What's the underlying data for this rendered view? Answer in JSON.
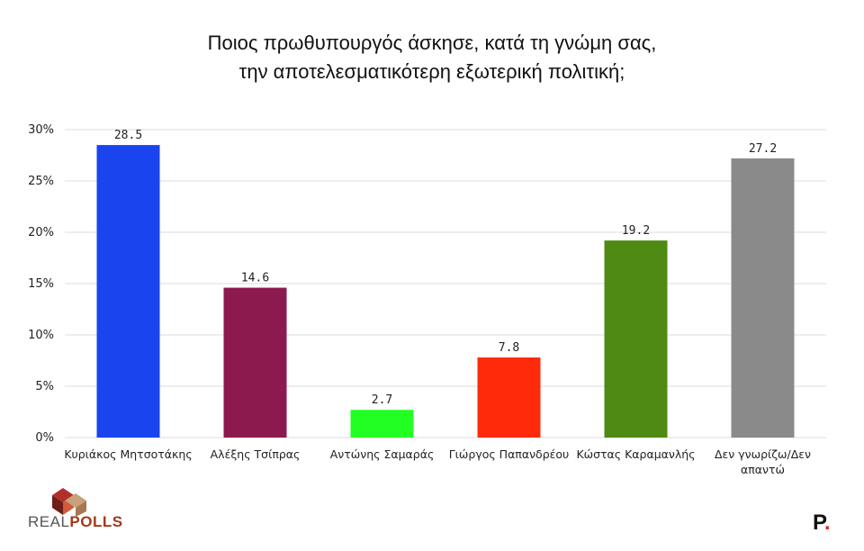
{
  "title_lines": [
    "Ποιος πρωθυπουργός άσκησε, κατά τη γνώμη σας,",
    "την αποτελεσματικότερη εξωτερική πολιτική;"
  ],
  "chart_data": {
    "type": "bar",
    "title": "Ποιος πρωθυπουργός άσκησε, κατά τη γνώμη σας, την αποτελεσματικότερη εξωτερική πολιτική;",
    "categories": [
      [
        "Κυριάκος Μητσοτάκης"
      ],
      [
        "Αλέξης Τσίπρας"
      ],
      [
        "Αντώνης Σαμαράς"
      ],
      [
        "Γιώργος Παπανδρέου"
      ],
      [
        "Κώστας Καραμανλής"
      ],
      [
        "Δεν γνωρίζω/Δεν",
        "απαντώ"
      ]
    ],
    "values": [
      28.5,
      14.6,
      2.7,
      7.8,
      19.2,
      27.2
    ],
    "value_labels": [
      "28.5",
      "14.6",
      "2.7",
      "7.8",
      "19.2",
      "27.2"
    ],
    "colors": [
      "#1a44ee",
      "#8c1a4e",
      "#22ff22",
      "#ff2a0a",
      "#4f8a12",
      "#8a8a8a"
    ],
    "yticks": [
      "0%",
      "5%",
      "10%",
      "15%",
      "20%",
      "25%",
      "30%"
    ],
    "ylim": [
      0,
      30
    ],
    "grid": true,
    "legend": "none"
  },
  "logos": {
    "left_prefix": "REAL",
    "left_suffix": "POLLS",
    "right_letter": "P",
    "right_dot": "."
  }
}
